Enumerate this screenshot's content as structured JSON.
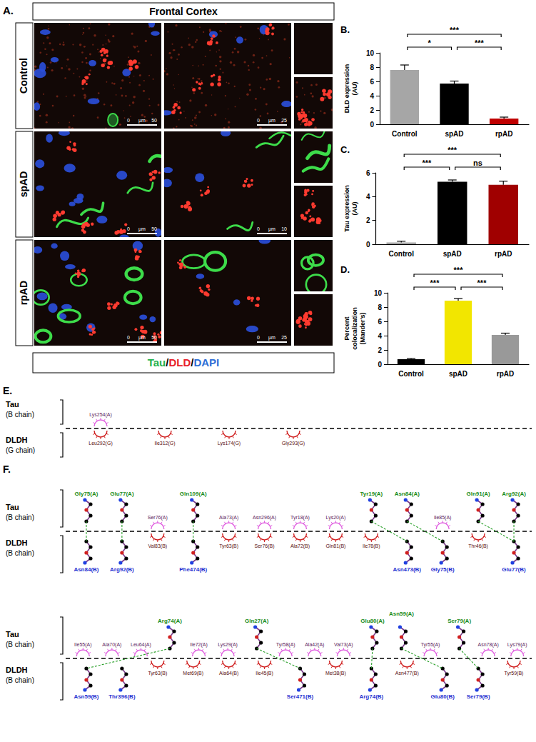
{
  "panel_a": {
    "letter": "A.",
    "title": "Frontal Cortex",
    "rows": [
      {
        "label": "Control",
        "scale_bars": [
          [
            "0",
            "µm",
            "50"
          ],
          [
            "0",
            "µm",
            "25"
          ]
        ]
      },
      {
        "label": "spAD",
        "scale_bars": [
          [
            "0",
            "µm",
            "50"
          ],
          [
            "0",
            "µm",
            "10"
          ]
        ]
      },
      {
        "label": "rpAD",
        "scale_bars": [
          [
            "0",
            "µm",
            "50"
          ],
          [
            "0",
            "µm",
            "25"
          ]
        ]
      }
    ],
    "stain_legend": {
      "separator": "/",
      "items": [
        {
          "text": "Tau",
          "color": "#22b14c"
        },
        {
          "text": "DLD",
          "color": "#e8202a"
        },
        {
          "text": "DAPI",
          "color": "#2f6fd6"
        }
      ]
    }
  },
  "chart_data": [
    {
      "letter": "B.",
      "type": "bar",
      "categories": [
        "Control",
        "spAD",
        "rpAD"
      ],
      "values": [
        7.6,
        5.7,
        0.8
      ],
      "errors": [
        0.7,
        0.35,
        0.2
      ],
      "colors": [
        "#a6a6a6",
        "#000000",
        "#c00000"
      ],
      "y_label": "DLD expression (AU)",
      "ylim": [
        0,
        10
      ],
      "yticks": [
        0,
        2,
        4,
        6,
        8,
        10
      ],
      "grid": false,
      "comparisons": [
        {
          "from": "Control",
          "to": "spAD",
          "label": "*"
        },
        {
          "from": "spAD",
          "to": "rpAD",
          "label": "***"
        },
        {
          "from": "Control",
          "to": "rpAD",
          "label": "***"
        }
      ]
    },
    {
      "letter": "C.",
      "type": "bar",
      "categories": [
        "Control",
        "spAD",
        "rpAD"
      ],
      "values": [
        0.15,
        5.25,
        5.0
      ],
      "errors": [
        0.1,
        0.15,
        0.3
      ],
      "colors": [
        "#a6a6a6",
        "#000000",
        "#a00000"
      ],
      "y_label": "Tau expression (AU)",
      "ylim": [
        0,
        6
      ],
      "yticks": [
        0,
        2,
        4,
        6
      ],
      "grid": false,
      "comparisons": [
        {
          "from": "Control",
          "to": "spAD",
          "label": "***"
        },
        {
          "from": "spAD",
          "to": "rpAD",
          "label": "ns"
        },
        {
          "from": "Control",
          "to": "rpAD",
          "label": "***"
        }
      ]
    },
    {
      "letter": "D.",
      "type": "bar",
      "categories": [
        "Control",
        "spAD",
        "rpAD"
      ],
      "values": [
        0.7,
        8.9,
        4.1
      ],
      "errors": [
        0.1,
        0.3,
        0.25
      ],
      "colors": [
        "#000000",
        "#f2e600",
        "#999999"
      ],
      "y_label": "Percent colocalization (Mander's)",
      "ylim": [
        0,
        10
      ],
      "yticks": [
        0,
        2,
        4,
        6,
        8,
        10
      ],
      "grid": false,
      "comparisons": [
        {
          "from": "Control",
          "to": "spAD",
          "label": "***"
        },
        {
          "from": "spAD",
          "to": "rpAD",
          "label": "***"
        },
        {
          "from": "Control",
          "to": "rpAD",
          "label": "***"
        }
      ]
    }
  ],
  "panel_e": {
    "letter": "E.",
    "rows": [
      {
        "upper": {
          "protein": "Tau",
          "chain": "(B chain)",
          "residues": [
            {
              "name": "Lys254(A)",
              "kind": "hydrophobic"
            }
          ]
        },
        "lower": {
          "protein": "DLDH",
          "chain": "(G chain)",
          "residues": [
            {
              "name": "Leu292(G)",
              "kind": "hydrophobic"
            },
            {
              "name": "Ile312(G)",
              "kind": "hydrophobic"
            },
            {
              "name": "Lys174(G)",
              "kind": "hydrophobic"
            },
            {
              "name": "Gly293(G)",
              "kind": "hydrophobic"
            }
          ]
        }
      }
    ]
  },
  "panel_f": {
    "letter": "F.",
    "rows": [
      {
        "upper": {
          "protein": "Tau",
          "chain": "(B chain)",
          "residues": [
            {
              "name": "Gly75(A)",
              "kind": "hbond"
            },
            {
              "name": "Glu77(A)",
              "kind": "hbond"
            },
            {
              "name": "Ser76(A)",
              "kind": "hydrophobic"
            },
            {
              "name": "Gln109(A)",
              "kind": "hbond"
            },
            {
              "name": "Ala73(A)",
              "kind": "hydrophobic"
            },
            {
              "name": "Asn296(A)",
              "kind": "hydrophobic"
            },
            {
              "name": "Tyr18(A)",
              "kind": "hydrophobic"
            },
            {
              "name": "Lys20(A)",
              "kind": "hydrophobic"
            },
            {
              "name": "Tyr19(A)",
              "kind": "hbond"
            },
            {
              "name": "Asn84(A)",
              "kind": "hbond"
            },
            {
              "name": "Ile85(A)",
              "kind": "hydrophobic"
            },
            {
              "name": "Gln91(A)",
              "kind": "hbond"
            },
            {
              "name": "Arg92(A)",
              "kind": "hbond"
            }
          ]
        },
        "lower": {
          "protein": "DLDH",
          "chain": "(B chain)",
          "residues": [
            {
              "name": "Asn84(B)",
              "kind": "hbond"
            },
            {
              "name": "Arg92(B)",
              "kind": "hbond"
            },
            {
              "name": "Val83(B)",
              "kind": "hydrophobic"
            },
            {
              "name": "Phe474(B)",
              "kind": "hbond"
            },
            {
              "name": "Tyr63(B)",
              "kind": "hydrophobic"
            },
            {
              "name": "Ser76(B)",
              "kind": "hydrophobic"
            },
            {
              "name": "Ala72(B)",
              "kind": "hydrophobic"
            },
            {
              "name": "Gln81(B)",
              "kind": "hydrophobic"
            },
            {
              "name": "Ile78(B)",
              "kind": "hydrophobic"
            },
            {
              "name": "Asn473(B)",
              "kind": "hbond"
            },
            {
              "name": "Gly75(B)",
              "kind": "hbond"
            },
            {
              "name": "Thr46(B)",
              "kind": "hydrophobic"
            },
            {
              "name": "Glu77(B)",
              "kind": "hbond"
            }
          ]
        },
        "bonds": [
          [
            "Gly75(A)",
            "Asn84(B)"
          ],
          [
            "Glu77(A)",
            "Arg92(B)"
          ],
          [
            "Gln109(A)",
            "Phe474(B)"
          ],
          [
            "Tyr19(A)",
            "Asn473(B)"
          ],
          [
            "Asn84(A)",
            "Gly75(B)"
          ],
          [
            "Gln91(A)",
            "Glu77(B)"
          ],
          [
            "Arg92(A)",
            "Glu77(B)"
          ]
        ]
      },
      {
        "upper": {
          "protein": "Tau",
          "chain": "(B chain)",
          "residues": [
            {
              "name": "Ile55(A)",
              "kind": "hydrophobic"
            },
            {
              "name": "Ala70(A)",
              "kind": "hydrophobic"
            },
            {
              "name": "Leu64(A)",
              "kind": "hydrophobic"
            },
            {
              "name": "Arg74(A)",
              "kind": "hbond"
            },
            {
              "name": "Ile72(A)",
              "kind": "hydrophobic"
            },
            {
              "name": "Lys29(A)",
              "kind": "hydrophobic"
            },
            {
              "name": "Gln27(A)",
              "kind": "hbond"
            },
            {
              "name": "Tyr58(A)",
              "kind": "hydrophobic"
            },
            {
              "name": "Ala42(A)",
              "kind": "hydrophobic"
            },
            {
              "name": "Val73(A)",
              "kind": "hydrophobic"
            },
            {
              "name": "Glu80(A)",
              "kind": "hbond"
            },
            {
              "name": "Asn59(A)",
              "kind": "hbond"
            },
            {
              "name": "Tyr55(A)",
              "kind": "hydrophobic"
            },
            {
              "name": "Ser79(A)",
              "kind": "hbond"
            },
            {
              "name": "Asn78(A)",
              "kind": "hydrophobic"
            },
            {
              "name": "Lys79(A)",
              "kind": "hydrophobic"
            }
          ]
        },
        "lower": {
          "protein": "DLDH",
          "chain": "(B chain)",
          "residues": [
            {
              "name": "Asn59(B)",
              "kind": "hbond"
            },
            {
              "name": "Thr396(B)",
              "kind": "hbond"
            },
            {
              "name": "Tyr63(B)",
              "kind": "hydrophobic"
            },
            {
              "name": "Met69(B)",
              "kind": "hydrophobic"
            },
            {
              "name": "Ala64(B)",
              "kind": "hydrophobic"
            },
            {
              "name": "Ile45(B)",
              "kind": "hydrophobic"
            },
            {
              "name": "Ser471(B)",
              "kind": "hbond"
            },
            {
              "name": "Met38(B)",
              "kind": "hydrophobic"
            },
            {
              "name": "Arg74(B)",
              "kind": "hbond"
            },
            {
              "name": "Asn477(B)",
              "kind": "hydrophobic"
            },
            {
              "name": "Glu80(B)",
              "kind": "hbond"
            },
            {
              "name": "Ser79(B)",
              "kind": "hbond"
            },
            {
              "name": "Tyr59(B)",
              "kind": "hydrophobic"
            }
          ]
        },
        "bonds": [
          [
            "Arg74(A)",
            "Asn59(B)"
          ],
          [
            "Gln27(A)",
            "Ser471(B)"
          ],
          [
            "Glu80(A)",
            "Arg74(B)"
          ],
          [
            "Asn59(A)",
            "Glu80(B)"
          ],
          [
            "Ser79(A)",
            "Ser79(B)"
          ]
        ]
      }
    ]
  }
}
